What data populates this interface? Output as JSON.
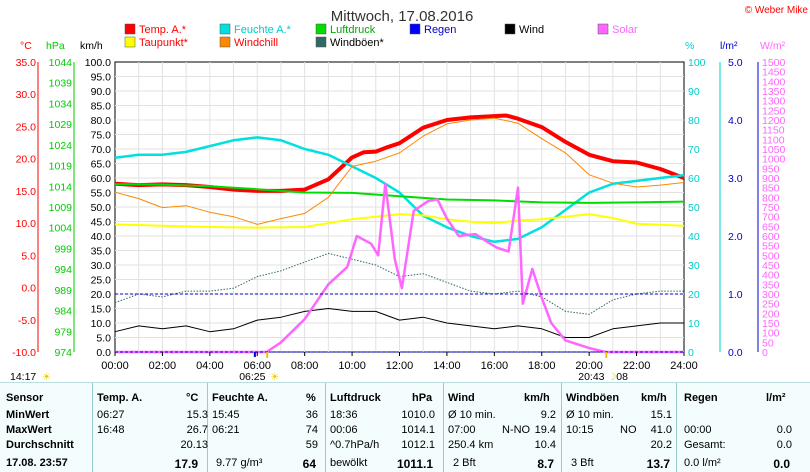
{
  "chart_data": {
    "type": "line",
    "title": "Mittwoch, 17.08.2016",
    "copyright": "© Weber Mike",
    "axis_units": {
      "temp": "°C",
      "pressure": "hPa",
      "wind": "km/h",
      "humidity": "%",
      "rain": "l/m²",
      "solar": "W/m²"
    },
    "axes": {
      "temp": {
        "ylim": [
          -10,
          35
        ],
        "ticks": [
          "35.0",
          "30.0",
          "25.0",
          "20.0",
          "15.0",
          "10.0",
          "5.0",
          "0.0",
          "-5.0",
          "-10.0"
        ],
        "color": "#ff0000"
      },
      "pressure": {
        "ylim": [
          974,
          1044
        ],
        "ticks": [
          "1044",
          "1039",
          "1034",
          "1029",
          "1024",
          "1019",
          "1014",
          "1009",
          "1004",
          "999",
          "994",
          "989",
          "984",
          "979",
          "974"
        ],
        "color": "#00cc00"
      },
      "wind": {
        "ylim": [
          0,
          100
        ],
        "ticks": [
          "100.0",
          "95.0",
          "90.0",
          "85.0",
          "80.0",
          "75.0",
          "70.0",
          "65.0",
          "60.0",
          "55.0",
          "50.0",
          "45.0",
          "40.0",
          "35.0",
          "30.0",
          "25.0",
          "20.0",
          "15.0",
          "10.0",
          "5.0",
          "0.0"
        ],
        "color": "#000000"
      },
      "humidity": {
        "ylim": [
          0,
          100
        ],
        "ticks": [
          "100",
          "90",
          "80",
          "70",
          "60",
          "50",
          "40",
          "30",
          "20",
          "10",
          "0"
        ],
        "color": "#00cccc"
      },
      "rain": {
        "ylim": [
          0,
          5
        ],
        "ticks": [
          "5.0",
          "4.0",
          "3.0",
          "2.0",
          "1.0",
          "0.0"
        ],
        "color": "#0000cc"
      },
      "solar": {
        "ylim": [
          0,
          1500
        ],
        "ticks": [
          "1500",
          "1450",
          "1400",
          "1350",
          "1300",
          "1250",
          "1200",
          "1150",
          "1100",
          "1050",
          "1000",
          "950",
          "900",
          "850",
          "800",
          "750",
          "700",
          "650",
          "600",
          "550",
          "500",
          "450",
          "400",
          "350",
          "300",
          "250",
          "200",
          "150",
          "100",
          "50",
          "0"
        ],
        "color": "#ff66ff"
      }
    },
    "x_ticks": [
      "00:00",
      "02:00",
      "04:00",
      "06:00",
      "08:00",
      "10:00",
      "12:00",
      "14:00",
      "16:00",
      "18:00",
      "20:00",
      "22:00",
      "24:00"
    ],
    "grid": true,
    "legend": [
      {
        "name": "Temp. A.*",
        "color": "#ff0000"
      },
      {
        "name": "Feuchte A.*",
        "color": "#00e0e0"
      },
      {
        "name": "Luftdruck",
        "color": "#00dd00"
      },
      {
        "name": "Regen",
        "color": "#0000ff"
      },
      {
        "name": "Wind",
        "color": "#000000"
      },
      {
        "name": "Solar",
        "color": "#ff66ff"
      },
      {
        "name": "Taupunkt*",
        "color": "#ffff00"
      },
      {
        "name": "Windchill",
        "color": "#ff8800"
      },
      {
        "name": "Windböen*",
        "color": "#336666"
      }
    ],
    "markers": {
      "left_time": "14:17",
      "sunrise": "06:25",
      "sunset": "20:43",
      "moon": "08"
    },
    "series": [
      {
        "name": "Temp. A.*",
        "axis": "temp",
        "color": "#ff0000",
        "x": [
          0,
          1,
          2,
          3,
          4,
          5,
          6,
          7,
          8,
          9,
          10,
          10.5,
          11,
          11.5,
          12,
          13,
          14,
          15,
          16,
          16.5,
          17,
          18,
          19,
          20,
          21,
          22,
          23,
          24
        ],
        "values": [
          16.1,
          15.9,
          16.0,
          15.9,
          15.6,
          15.2,
          15.0,
          15.0,
          15.2,
          16.8,
          20.2,
          21.0,
          21.1,
          21.8,
          22.4,
          24.8,
          26.0,
          26.4,
          26.6,
          26.7,
          26.2,
          24.9,
          22.6,
          20.6,
          19.6,
          19.4,
          18.4,
          17.0
        ]
      },
      {
        "name": "Feuchte A.*",
        "axis": "humidity",
        "color": "#00e0e0",
        "x": [
          0,
          1,
          2,
          3,
          4,
          5,
          6,
          7,
          8,
          9,
          10,
          11,
          12,
          13,
          14,
          15,
          16,
          17,
          18,
          19,
          20,
          21,
          22,
          23,
          24
        ],
        "values": [
          67,
          68,
          68,
          69,
          71,
          73,
          74,
          73,
          70,
          68,
          64,
          60,
          55,
          47,
          43,
          40,
          38,
          39,
          43,
          49,
          55,
          58,
          59,
          60,
          61
        ]
      },
      {
        "name": "Luftdruck",
        "axis": "pressure",
        "color": "#00dd00",
        "x": [
          0,
          2,
          4,
          6,
          8,
          10,
          12,
          14,
          16,
          18,
          20,
          22,
          24
        ],
        "values": [
          1014.5,
          1014.4,
          1014.0,
          1013.3,
          1012.5,
          1012.4,
          1011.6,
          1010.8,
          1010.6,
          1010.1,
          1010.0,
          1010.1,
          1010.3
        ]
      },
      {
        "name": "Taupunkt*",
        "axis": "temp",
        "color": "#ffff00",
        "x": [
          0,
          2,
          4,
          6,
          8,
          10,
          11,
          12,
          13,
          14,
          15,
          16,
          17,
          18,
          19,
          20,
          21,
          22,
          24
        ],
        "values": [
          9.8,
          9.6,
          9.4,
          9.3,
          9.4,
          10.6,
          11.0,
          11.4,
          11.2,
          10.6,
          10.2,
          10.0,
          10.4,
          10.6,
          11.0,
          11.4,
          10.8,
          9.9,
          9.6
        ]
      },
      {
        "name": "Windchill",
        "axis": "temp",
        "color": "#ff8800",
        "x": [
          0,
          1,
          2,
          3,
          4,
          5,
          6,
          7,
          8,
          9,
          10,
          11,
          12,
          13,
          14,
          15,
          16,
          17,
          18,
          19,
          20,
          21,
          22,
          23,
          24
        ],
        "values": [
          14.8,
          13.8,
          12.4,
          12.7,
          11.7,
          11.0,
          9.8,
          10.7,
          11.5,
          14.0,
          18.8,
          19.6,
          20.9,
          23.5,
          25.4,
          26.0,
          26.3,
          25.5,
          23.1,
          20.9,
          17.5,
          16.2,
          15.6,
          15.9,
          16.3
        ]
      },
      {
        "name": "Wind",
        "axis": "wind",
        "color": "#000000",
        "x": [
          0,
          1,
          2,
          3,
          4,
          5,
          6,
          7,
          8,
          9,
          10,
          11,
          12,
          13,
          14,
          15,
          16,
          17,
          18,
          19,
          20,
          21,
          22,
          23,
          24
        ],
        "values": [
          7,
          9,
          8,
          9,
          7,
          8,
          11,
          12,
          14,
          15,
          14,
          14,
          11,
          12,
          10,
          9,
          8,
          9,
          8,
          5,
          5,
          8,
          9,
          10,
          10
        ]
      },
      {
        "name": "Windböen*",
        "axis": "wind",
        "color": "#336666",
        "x": [
          0,
          1,
          2,
          3,
          4,
          5,
          6,
          7,
          8,
          9,
          10,
          11,
          12,
          13,
          14,
          15,
          16,
          17,
          18,
          19,
          20,
          21,
          22,
          23,
          24
        ],
        "values": [
          17,
          20,
          19,
          21,
          21,
          22,
          26,
          28,
          31,
          34,
          32,
          30,
          26,
          27,
          24,
          21,
          20,
          21,
          19,
          14,
          13,
          18,
          20,
          21,
          21
        ]
      },
      {
        "name": "Solar",
        "axis": "solar",
        "color": "#ff66ff",
        "x": [
          0,
          6.4,
          7,
          8,
          9,
          9.8,
          10.2,
          10.8,
          11.1,
          11.4,
          11.8,
          12.1,
          12.6,
          13.2,
          13.6,
          14.0,
          14.5,
          15.2,
          15.7,
          16.1,
          16.6,
          17.0,
          17.2,
          17.6,
          18.0,
          18.4,
          19,
          20,
          20.7,
          24
        ],
        "values": [
          0,
          0,
          50,
          170,
          350,
          440,
          600,
          560,
          500,
          870,
          480,
          330,
          730,
          780,
          790,
          690,
          600,
          610,
          570,
          540,
          520,
          850,
          250,
          430,
          280,
          150,
          60,
          20,
          0,
          0
        ]
      },
      {
        "name": "Regen",
        "axis": "rain",
        "color": "#0000ff",
        "x": [
          0,
          24
        ],
        "values": [
          0,
          0
        ]
      }
    ]
  },
  "table": {
    "headers": {
      "sensor": "Sensor",
      "temp": "Temp. A.",
      "temp_unit": "°C",
      "feuchte": "Feuchte A.",
      "feuchte_unit": "%",
      "luftdruck": "Luftdruck",
      "luftdruck_unit": "hPa",
      "wind": "Wind",
      "wind_unit": "km/h",
      "boeen": "Windböen",
      "boeen_unit": "km/h",
      "regen": "Regen",
      "regen_unit": "l/m²"
    },
    "rows": [
      {
        "label": "MinWert",
        "temp_t": "06:27",
        "temp_v": "15.3",
        "feu_t": "15:45",
        "feu_v": "36",
        "luft_t": "18:36",
        "luft_v": "1010.0",
        "wind_t": "Ø 10 min.",
        "wind_d": "",
        "wind_v": "9.2",
        "boe_t": "Ø 10 min.",
        "boe_d": "",
        "boe_v": "15.1",
        "regen_t": "",
        "regen_v": ""
      },
      {
        "label": "MaxWert",
        "temp_t": "16:48",
        "temp_v": "26.7",
        "feu_t": "06:21",
        "feu_v": "74",
        "luft_t": "00:06",
        "luft_v": "1014.1",
        "wind_t": "07:00",
        "wind_d": "N-NO",
        "wind_v": "19.4",
        "boe_t": "10:15",
        "boe_d": "NO",
        "boe_v": "41.0",
        "regen_t": "00:00",
        "regen_v": "0.0"
      },
      {
        "label": "Durchschnitt",
        "temp_t": "",
        "temp_v": "20.13",
        "feu_t": "",
        "feu_v": "59",
        "luft_t": "^0.7hPa/h",
        "luft_v": "1012.1",
        "wind_t": "250.4 km",
        "wind_d": "",
        "wind_v": "10.4",
        "boe_t": "",
        "boe_d": "",
        "boe_v": "20.2",
        "regen_t": "Gesamt:",
        "regen_v": "0.0"
      }
    ],
    "footer": {
      "datetime": "17.08. 23:57",
      "temp": "17.9",
      "feu_extra": "9.77 g/m³",
      "feu": "64",
      "luft_text": "bewölkt",
      "luft": "1011.1",
      "wind_bft": "2 Bft",
      "wind": "8.7",
      "boe_bft": "3 Bft",
      "boe": "13.7",
      "regen_rate": "0.0 l/m²",
      "regen": "0.0"
    }
  }
}
